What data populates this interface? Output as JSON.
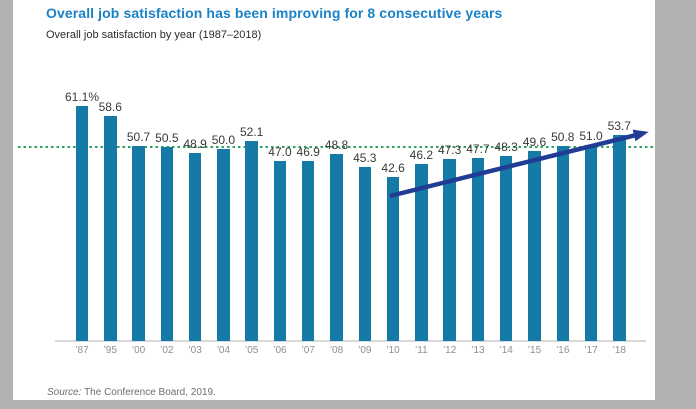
{
  "header": {
    "title": "Overall job satisfaction has been improving for 8 consecutive years",
    "subtitle": "Overall job satisfaction by year (1987–2018)"
  },
  "footer": {
    "source_prefix": "Source:",
    "source_rest": " The Conference Board, 2019."
  },
  "colors": {
    "background": "#b2b2b2",
    "panel": "#ffffff",
    "title_blue": "#1a82c6",
    "bar_teal": "#157aa6",
    "reference_green": "#2aa35f",
    "arrow_navy": "#203c94",
    "axis_gray": "#d8d8d8",
    "value_label": "#3a3a3a",
    "tick_gray": "#8f8f8f"
  },
  "chart_data": {
    "type": "bar",
    "title": "Overall job satisfaction has been improving for 8 consecutive years",
    "subtitle": "Overall job satisfaction by year (1987–2018)",
    "categories": [
      "’87",
      "’95",
      "’00",
      "’02",
      "’03",
      "’04",
      "’05",
      "’06",
      "’07",
      "’08",
      "’09",
      "’10",
      "’11",
      "’12",
      "’13",
      "’14",
      "’15",
      "’16",
      "’17",
      "’18"
    ],
    "values": [
      61.1,
      58.6,
      50.7,
      50.5,
      48.9,
      50.0,
      52.1,
      47.0,
      46.9,
      48.8,
      45.3,
      42.6,
      46.2,
      47.3,
      47.7,
      48.3,
      49.6,
      50.8,
      51.0,
      53.7
    ],
    "value_labels": [
      "61.1%",
      "58.6",
      "50.7",
      "50.5",
      "48.9",
      "50.0",
      "52.1",
      "47.0",
      "46.9",
      "48.8",
      "45.3",
      "42.6",
      "46.2",
      "47.3",
      "47.7",
      "48.3",
      "49.6",
      "50.8",
      "51.0",
      "53.7"
    ],
    "unit": "%",
    "xlabel": "",
    "ylabel": "",
    "ylim": [
      0,
      65
    ],
    "grid": false,
    "legend": "none",
    "reference_line": {
      "style": "dotted",
      "color": "#2aa35f",
      "approx_value": 50.4
    },
    "trend_arrow": {
      "from_category": "’10",
      "to_category": "’18",
      "color": "#203c94",
      "direction": "up"
    }
  }
}
